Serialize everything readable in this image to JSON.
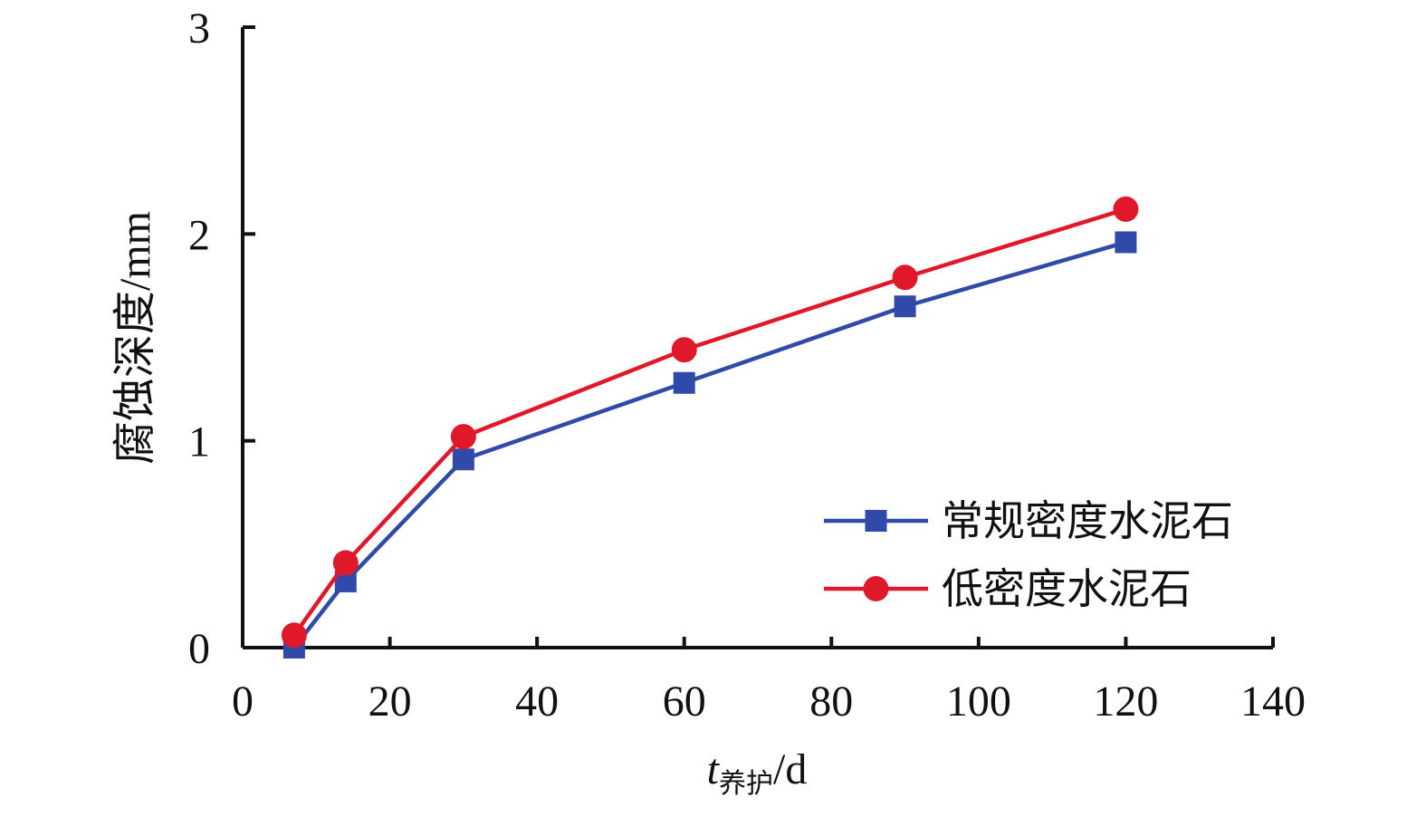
{
  "chart_data": {
    "type": "line",
    "x": [
      7,
      14,
      30,
      60,
      90,
      120
    ],
    "series": [
      {
        "name": "常规密度水泥石",
        "values": [
          0.0,
          0.32,
          0.91,
          1.28,
          1.65,
          1.96
        ],
        "color": "#2f4aa8",
        "marker": "square"
      },
      {
        "name": "低密度水泥石",
        "values": [
          0.06,
          0.41,
          1.02,
          1.44,
          1.79,
          2.12
        ],
        "color": "#e0182a",
        "marker": "circle"
      }
    ],
    "xlim": [
      0,
      140
    ],
    "ylim": [
      0,
      3
    ],
    "xticks": [
      "0",
      "20",
      "40",
      "60",
      "80",
      "100",
      "120",
      "140"
    ],
    "yticks": [
      "0",
      "1",
      "2",
      "3"
    ],
    "xlabel": {
      "main": "t",
      "subscript": "养护",
      "unit": "/d"
    },
    "ylabel": "腐蚀深度/mm",
    "grid": false,
    "legend_position": "bottom-right"
  }
}
